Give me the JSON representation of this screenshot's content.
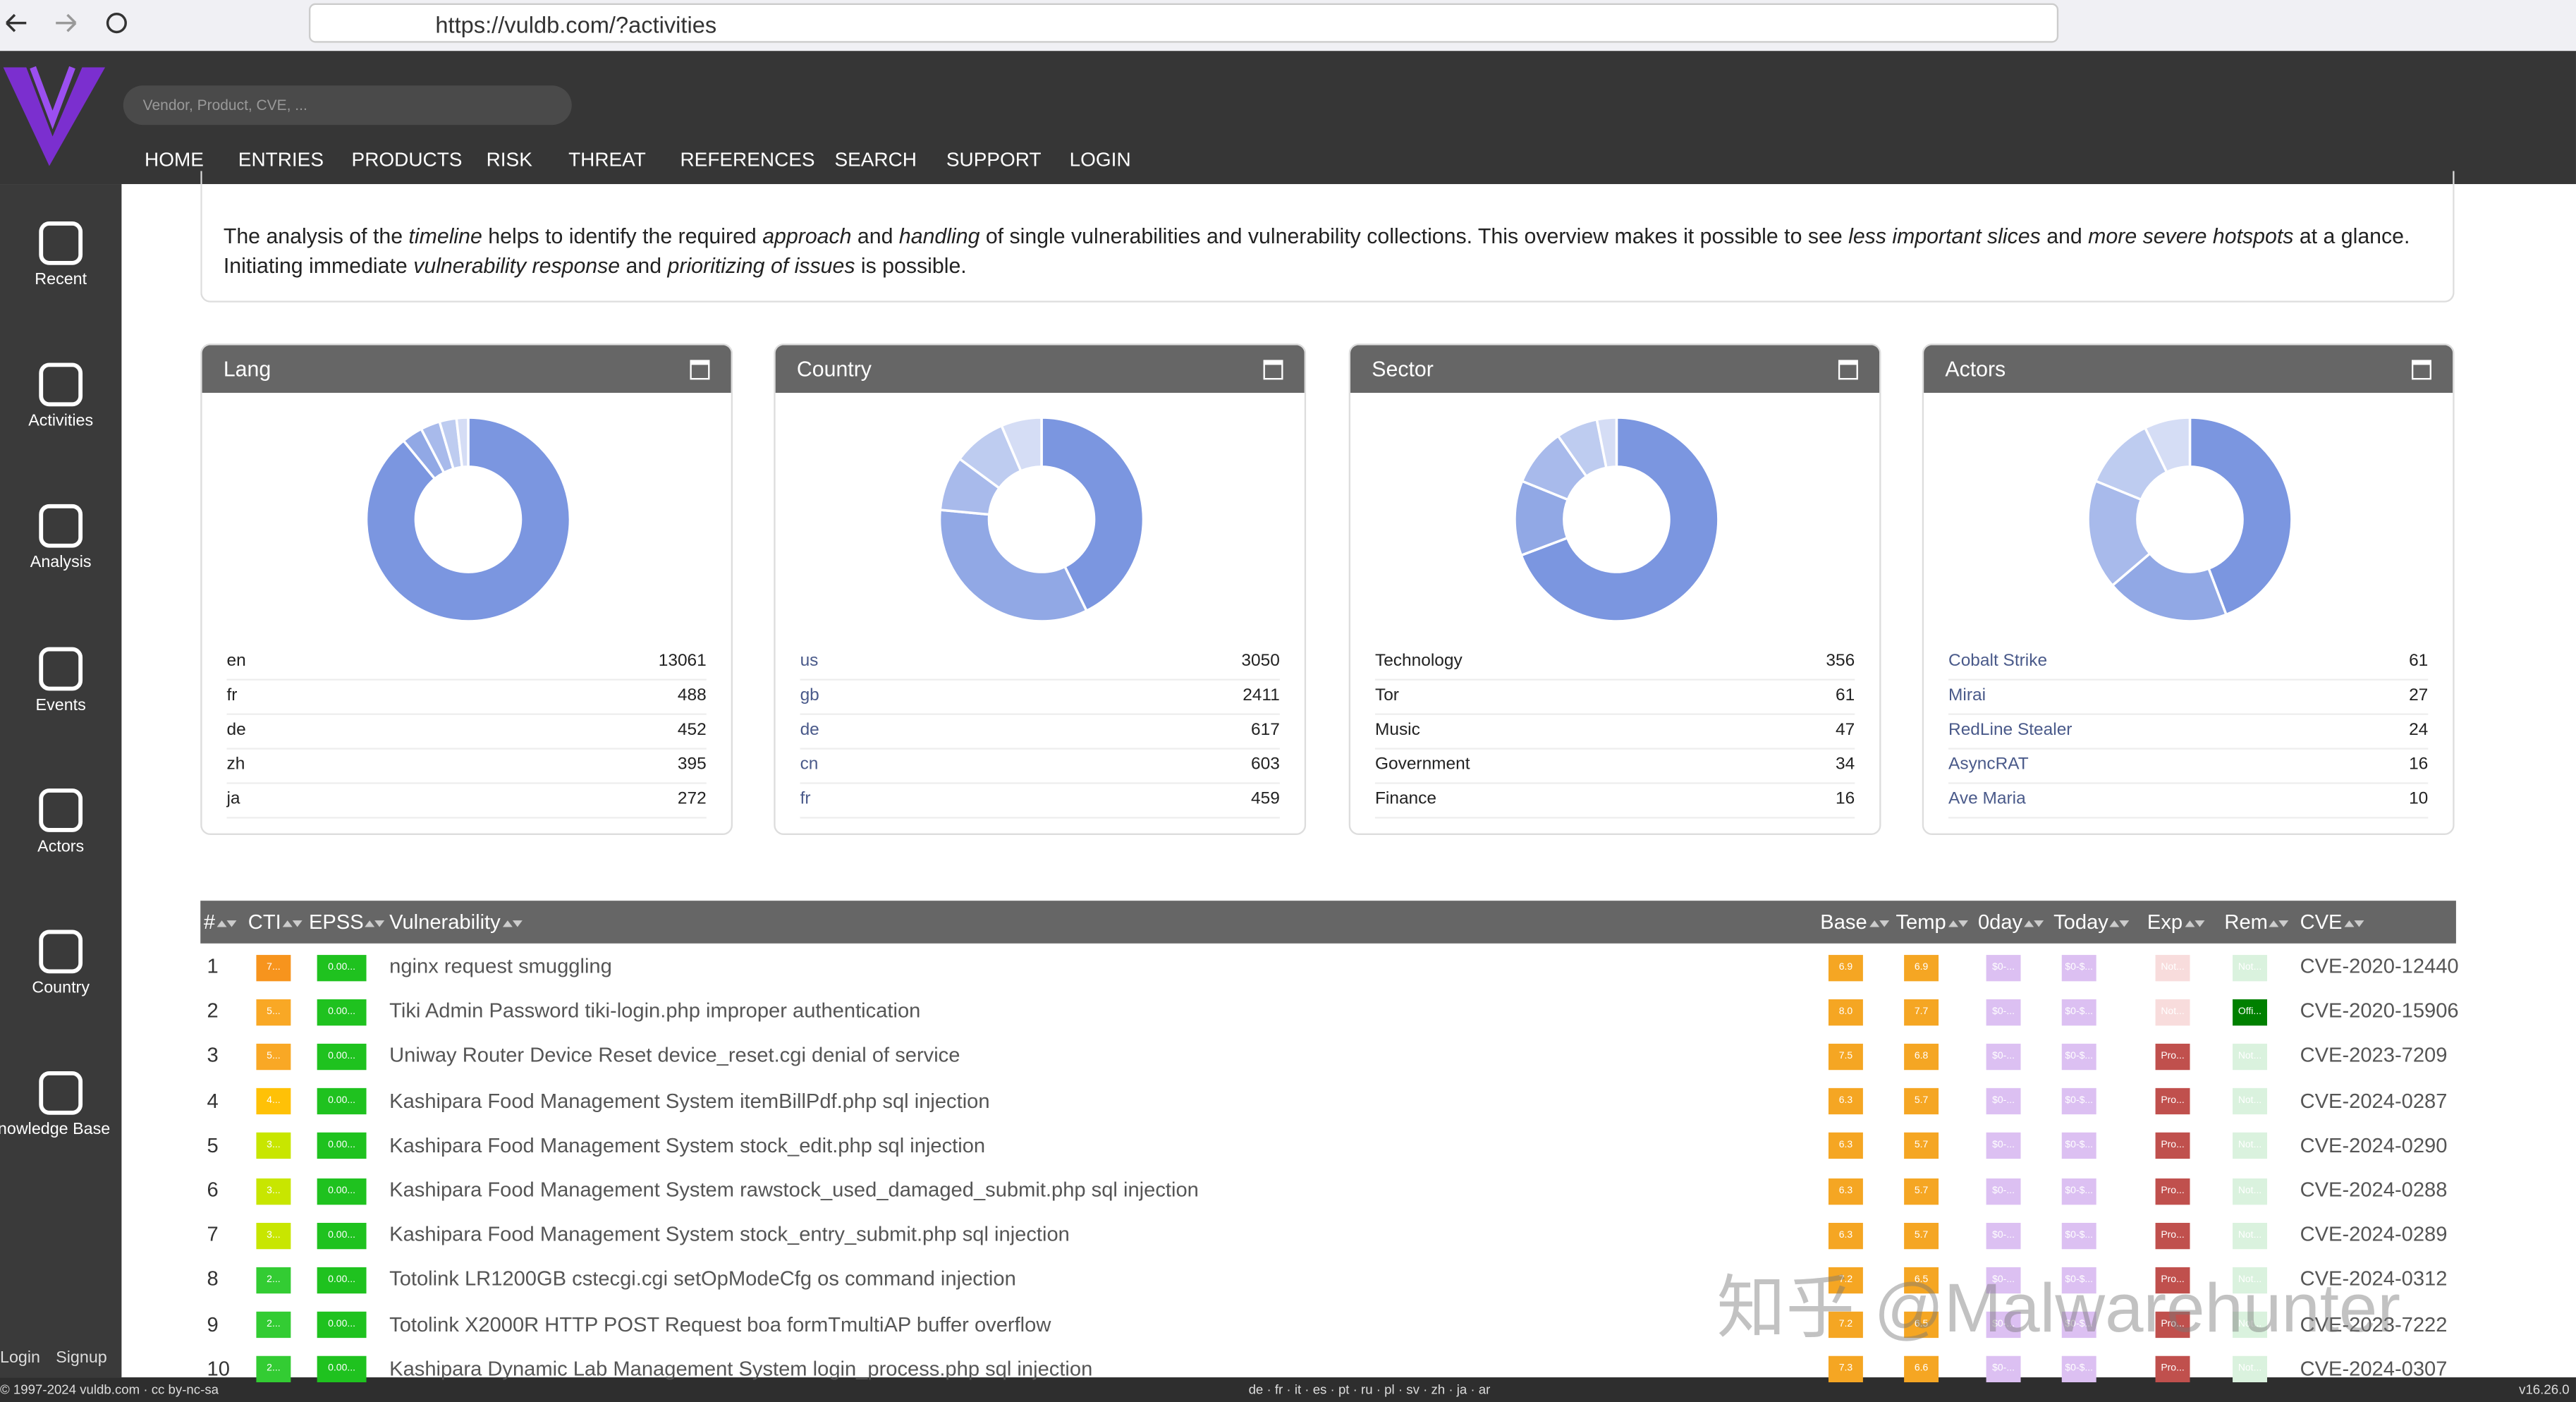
{
  "browser": {
    "url": "https://vuldb.com/?activities"
  },
  "header": {
    "search_placeholder": "Vendor, Product, CVE, ...",
    "nav": [
      "HOME",
      "ENTRIES",
      "PRODUCTS",
      "RISK",
      "THREAT",
      "REFERENCES",
      "SEARCH",
      "SUPPORT",
      "LOGIN"
    ]
  },
  "sidebar": {
    "items": [
      "Recent",
      "Activities",
      "Analysis",
      "Events",
      "Actors",
      "Country",
      "Knowledge Base"
    ],
    "login": "Login",
    "signup": "Signup"
  },
  "intro": [
    {
      "text": "The analysis of the "
    },
    {
      "text": "timeline",
      "em": true
    },
    {
      "text": " helps to identify the required "
    },
    {
      "text": "approach",
      "em": true
    },
    {
      "text": " and "
    },
    {
      "text": "handling",
      "em": true
    },
    {
      "text": " of single vulnerabilities and vulnerability collections. This overview makes it possible to see "
    },
    {
      "text": "less important slices",
      "em": true
    },
    {
      "text": " and "
    },
    {
      "text": "more severe hotspots",
      "em": true
    },
    {
      "text": " at a glance. Initiating immediate "
    },
    {
      "text": "vulnerability response",
      "em": true
    },
    {
      "text": " and "
    },
    {
      "text": "prioritizing of issues",
      "em": true
    },
    {
      "text": " is possible."
    }
  ],
  "panels": [
    {
      "title": "Lang",
      "link": false,
      "items": [
        {
          "label": "en",
          "value": 13061
        },
        {
          "label": "fr",
          "value": 488
        },
        {
          "label": "de",
          "value": 452
        },
        {
          "label": "zh",
          "value": 395
        },
        {
          "label": "ja",
          "value": 272
        }
      ]
    },
    {
      "title": "Country",
      "link": true,
      "items": [
        {
          "label": "us",
          "value": 3050
        },
        {
          "label": "gb",
          "value": 2411
        },
        {
          "label": "de",
          "value": 617
        },
        {
          "label": "cn",
          "value": 603
        },
        {
          "label": "fr",
          "value": 459
        }
      ]
    },
    {
      "title": "Sector",
      "link": false,
      "items": [
        {
          "label": "Technology",
          "value": 356
        },
        {
          "label": "Tor",
          "value": 61
        },
        {
          "label": "Music",
          "value": 47
        },
        {
          "label": "Government",
          "value": 34
        },
        {
          "label": "Finance",
          "value": 16
        }
      ]
    },
    {
      "title": "Actors",
      "link": true,
      "items": [
        {
          "label": "Cobalt Strike",
          "value": 61
        },
        {
          "label": "Mirai",
          "value": 27
        },
        {
          "label": "RedLine Stealer",
          "value": 24
        },
        {
          "label": "AsyncRAT",
          "value": 16
        },
        {
          "label": "Ave Maria",
          "value": 10
        }
      ]
    }
  ],
  "table": {
    "columns": [
      "#",
      "CTI",
      "EPSS",
      "Vulnerability",
      "Base",
      "Temp",
      "0day",
      "Today",
      "Exp",
      "Rem",
      "CVE"
    ],
    "rows": [
      {
        "num": 1,
        "cti": {
          "text": "7...",
          "color": "#f7941d"
        },
        "epss": {
          "text": "0.00...",
          "color": "#1fc21f"
        },
        "name": "nginx request smuggling",
        "base": {
          "text": "6.9",
          "color": "#f5a623"
        },
        "temp": {
          "text": "6.9",
          "color": "#f5a623"
        },
        "zero": {
          "text": "$0-...",
          "color": "#dcc0f2"
        },
        "today": {
          "text": "$0-$...",
          "color": "#dcc0f2"
        },
        "exp": {
          "text": "Not...",
          "color": "#f8dcdc"
        },
        "rem": {
          "text": "Not...",
          "color": "#daf2de"
        },
        "cve": "CVE-2020-12440"
      },
      {
        "num": 2,
        "cti": {
          "text": "5...",
          "color": "#f9a825"
        },
        "epss": {
          "text": "0.00...",
          "color": "#1fc21f"
        },
        "name": "Tiki Admin Password tiki-login.php improper authentication",
        "base": {
          "text": "8.0",
          "color": "#f5a623"
        },
        "temp": {
          "text": "7.7",
          "color": "#f5a623"
        },
        "zero": {
          "text": "$0-...",
          "color": "#dcc0f2"
        },
        "today": {
          "text": "$0-$...",
          "color": "#dcc0f2"
        },
        "exp": {
          "text": "Not...",
          "color": "#f8dcdc"
        },
        "rem": {
          "text": "Offi...",
          "color": "#008000"
        },
        "cve": "CVE-2020-15906"
      },
      {
        "num": 3,
        "cti": {
          "text": "5...",
          "color": "#f9a825"
        },
        "epss": {
          "text": "0.00...",
          "color": "#1fc21f"
        },
        "name": "Uniway Router Device Reset device_reset.cgi denial of service",
        "base": {
          "text": "7.5",
          "color": "#f5a623"
        },
        "temp": {
          "text": "6.8",
          "color": "#f5a623"
        },
        "zero": {
          "text": "$0-...",
          "color": "#dcc0f2"
        },
        "today": {
          "text": "$0-$...",
          "color": "#dcc0f2"
        },
        "exp": {
          "text": "Pro...",
          "color": "#c0504d"
        },
        "rem": {
          "text": "Not...",
          "color": "#daf2de"
        },
        "cve": "CVE-2023-7209"
      },
      {
        "num": 4,
        "cti": {
          "text": "4...",
          "color": "#ffc107"
        },
        "epss": {
          "text": "0.00...",
          "color": "#1fc21f"
        },
        "name": "Kashipara Food Management System itemBillPdf.php sql injection",
        "base": {
          "text": "6.3",
          "color": "#f5a623"
        },
        "temp": {
          "text": "5.7",
          "color": "#f5a623"
        },
        "zero": {
          "text": "$0-...",
          "color": "#dcc0f2"
        },
        "today": {
          "text": "$0-$...",
          "color": "#dcc0f2"
        },
        "exp": {
          "text": "Pro...",
          "color": "#c0504d"
        },
        "rem": {
          "text": "Not...",
          "color": "#daf2de"
        },
        "cve": "CVE-2024-0287"
      },
      {
        "num": 5,
        "cti": {
          "text": "3...",
          "color": "#c8e600"
        },
        "epss": {
          "text": "0.00...",
          "color": "#1fc21f"
        },
        "name": "Kashipara Food Management System stock_edit.php sql injection",
        "base": {
          "text": "6.3",
          "color": "#f5a623"
        },
        "temp": {
          "text": "5.7",
          "color": "#f5a623"
        },
        "zero": {
          "text": "$0-...",
          "color": "#dcc0f2"
        },
        "today": {
          "text": "$0-$...",
          "color": "#dcc0f2"
        },
        "exp": {
          "text": "Pro...",
          "color": "#c0504d"
        },
        "rem": {
          "text": "Not...",
          "color": "#daf2de"
        },
        "cve": "CVE-2024-0290"
      },
      {
        "num": 6,
        "cti": {
          "text": "3...",
          "color": "#c8e600"
        },
        "epss": {
          "text": "0.00...",
          "color": "#1fc21f"
        },
        "name": "Kashipara Food Management System rawstock_used_damaged_submit.php sql injection",
        "base": {
          "text": "6.3",
          "color": "#f5a623"
        },
        "temp": {
          "text": "5.7",
          "color": "#f5a623"
        },
        "zero": {
          "text": "$0-...",
          "color": "#dcc0f2"
        },
        "today": {
          "text": "$0-$...",
          "color": "#dcc0f2"
        },
        "exp": {
          "text": "Pro...",
          "color": "#c0504d"
        },
        "rem": {
          "text": "Not...",
          "color": "#daf2de"
        },
        "cve": "CVE-2024-0288"
      },
      {
        "num": 7,
        "cti": {
          "text": "3...",
          "color": "#c8e600"
        },
        "epss": {
          "text": "0.00...",
          "color": "#1fc21f"
        },
        "name": "Kashipara Food Management System stock_entry_submit.php sql injection",
        "base": {
          "text": "6.3",
          "color": "#f5a623"
        },
        "temp": {
          "text": "5.7",
          "color": "#f5a623"
        },
        "zero": {
          "text": "$0-...",
          "color": "#dcc0f2"
        },
        "today": {
          "text": "$0-$...",
          "color": "#dcc0f2"
        },
        "exp": {
          "text": "Pro...",
          "color": "#c0504d"
        },
        "rem": {
          "text": "Not...",
          "color": "#daf2de"
        },
        "cve": "CVE-2024-0289"
      },
      {
        "num": 8,
        "cti": {
          "text": "2...",
          "color": "#33cc33"
        },
        "epss": {
          "text": "0.00...",
          "color": "#1fc21f"
        },
        "name": "Totolink LR1200GB cstecgi.cgi setOpModeCfg os command injection",
        "base": {
          "text": "7.2",
          "color": "#f5a623"
        },
        "temp": {
          "text": "6.5",
          "color": "#f5a623"
        },
        "zero": {
          "text": "$0-...",
          "color": "#dcc0f2"
        },
        "today": {
          "text": "$0-$...",
          "color": "#dcc0f2"
        },
        "exp": {
          "text": "Pro...",
          "color": "#c0504d"
        },
        "rem": {
          "text": "Not...",
          "color": "#daf2de"
        },
        "cve": "CVE-2024-0312"
      },
      {
        "num": 9,
        "cti": {
          "text": "2...",
          "color": "#33cc33"
        },
        "epss": {
          "text": "0.00...",
          "color": "#1fc21f"
        },
        "name": "Totolink X2000R HTTP POST Request boa formTmultiAP buffer overflow",
        "base": {
          "text": "7.2",
          "color": "#f5a623"
        },
        "temp": {
          "text": "6.5",
          "color": "#f5a623"
        },
        "zero": {
          "text": "$0-...",
          "color": "#dcc0f2"
        },
        "today": {
          "text": "$0-$...",
          "color": "#dcc0f2"
        },
        "exp": {
          "text": "Pro...",
          "color": "#c0504d"
        },
        "rem": {
          "text": "Not...",
          "color": "#daf2de"
        },
        "cve": "CVE-2023-7222"
      },
      {
        "num": 10,
        "cti": {
          "text": "2...",
          "color": "#33cc33"
        },
        "epss": {
          "text": "0.00...",
          "color": "#1fc21f"
        },
        "name": "Kashipara Dynamic Lab Management System login_process.php sql injection",
        "base": {
          "text": "7.3",
          "color": "#f5a623"
        },
        "temp": {
          "text": "6.6",
          "color": "#f5a623"
        },
        "zero": {
          "text": "$0-...",
          "color": "#dcc0f2"
        },
        "today": {
          "text": "$0-$...",
          "color": "#dcc0f2"
        },
        "exp": {
          "text": "Pro...",
          "color": "#c0504d"
        },
        "rem": {
          "text": "Not...",
          "color": "#daf2de"
        },
        "cve": "CVE-2024-0307"
      }
    ]
  },
  "footer": {
    "copyright": "© 1997-2024 vuldb.com · cc by-nc-sa",
    "languages": "de · fr · it · es · pt · ru · pl · sv · zh · ja · ar",
    "version": "v16.26.0"
  },
  "watermark": "知乎 @Malwarehunter"
}
